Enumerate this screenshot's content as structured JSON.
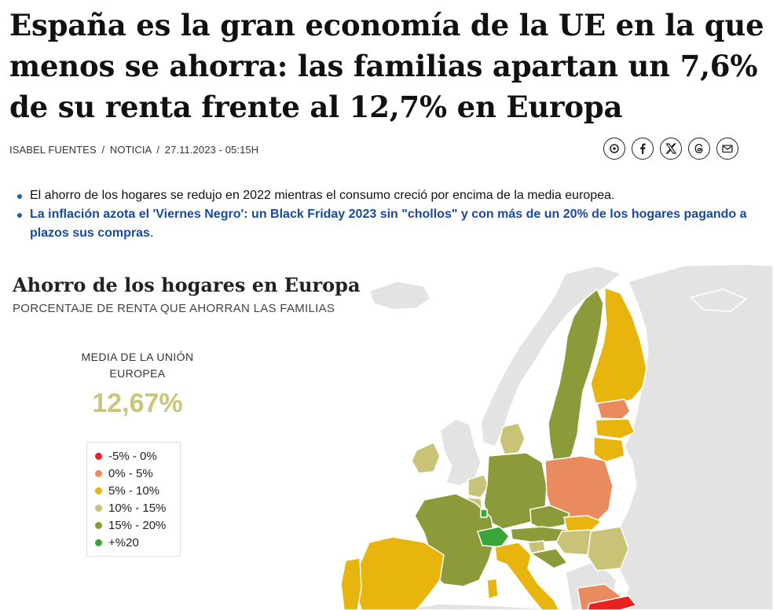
{
  "article": {
    "headline": "España es la gran economía de la UE en la que menos se ahorra: las familias apartan un 7,6% de su renta frente al 12,7% en Europa",
    "author": "ISABEL FUENTES",
    "section": "NOTICIA",
    "datetime": "27.11.2023 - 05:15H",
    "separator": "/"
  },
  "share_icons": [
    "bluesky-icon",
    "facebook-icon",
    "x-icon",
    "threads-icon",
    "email-icon"
  ],
  "bullets": {
    "item1": "El ahorro de los hogares se redujo en 2022 mientras el consumo creció por encima de la media europea.",
    "item2_link": "La inflación azota el 'Viernes Negro': un Black Friday 2023 sin \"chollos\" y con más de un 20% de los hogares pagando a plazos sus compras",
    "item2_tail": "."
  },
  "map": {
    "title": "Ahorro de los hogares en Europa",
    "subtitle": "PORCENTAJE DE RENTA QUE AHORRAN LAS FAMILIAS",
    "average_label": "MEDIA DE LA UNIÓN EUROPEA",
    "average_value": "12,67%",
    "legend": [
      {
        "label": "-5% - 0%",
        "color": "#e8221f"
      },
      {
        "label": "0% - 5%",
        "color": "#ea8a5f"
      },
      {
        "label": "5% - 10%",
        "color": "#e8b40e"
      },
      {
        "label": "10% - 15%",
        "color": "#c8c376"
      },
      {
        "label": "15% - 20%",
        "color": "#8c9a3a"
      },
      {
        "label": "+%20",
        "color": "#3aa63a"
      }
    ],
    "non_eu_color": "#e3e3e3",
    "sea_color": "#ffffff"
  }
}
